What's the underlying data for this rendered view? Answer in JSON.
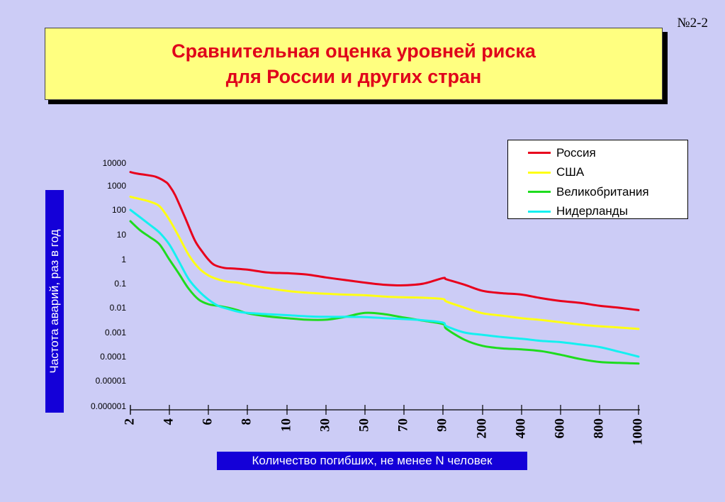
{
  "slide_number": "№2-2",
  "title": {
    "line1": "Сравнительная оценка уровней риска",
    "line2": "для России и других стран"
  },
  "colors": {
    "background": "#ccccf6",
    "title_bg": "#ffff80",
    "title_text": "#e0001a",
    "label_box": "#1400d8"
  },
  "chart_data": {
    "type": "line",
    "xlabel": "Количество погибших, не менее N человек",
    "ylabel": "Частота аварий, раз в год",
    "x_categories": [
      "2",
      "4",
      "6",
      "8",
      "10",
      "30",
      "50",
      "70",
      "90",
      "200",
      "400",
      "600",
      "800",
      "1000"
    ],
    "y_scale": "log",
    "y_ticks": [
      "10000",
      "1000",
      "100",
      "10",
      "1",
      "0.1",
      "0.01",
      "0.001",
      "0.0001",
      "0.00001",
      "0.000001"
    ],
    "legend_position": "top-right",
    "grid": false,
    "series": [
      {
        "name": "Россия",
        "color": "#e8001c",
        "x": [
          2,
          2.3,
          2.8,
          3.3,
          3.8,
          4.0,
          4.3,
          4.8,
          5.3,
          5.7,
          6.0,
          6.3,
          6.8,
          7.3,
          8,
          9,
          10,
          20,
          30,
          40,
          50,
          60,
          70,
          80,
          90,
          100,
          150,
          200,
          300,
          400,
          500,
          600,
          700,
          800,
          900,
          1000
        ],
        "y": [
          4000,
          3500,
          3000,
          2500,
          1500,
          1000,
          400,
          50,
          6,
          2,
          1,
          0.6,
          0.45,
          0.42,
          0.38,
          0.29,
          0.27,
          0.24,
          0.18,
          0.14,
          0.11,
          0.09,
          0.085,
          0.1,
          0.17,
          0.15,
          0.09,
          0.05,
          0.04,
          0.035,
          0.025,
          0.019,
          0.016,
          0.012,
          0.01,
          0.008
        ]
      },
      {
        "name": "США",
        "color": "#ffff14",
        "x": [
          2,
          2.5,
          3,
          3.5,
          4,
          4.5,
          5,
          5.5,
          6,
          6.5,
          7,
          7.5,
          8,
          9,
          10,
          20,
          30,
          40,
          50,
          60,
          70,
          80,
          90,
          100,
          150,
          200,
          300,
          400,
          500,
          600,
          700,
          800,
          900,
          1000
        ],
        "y": [
          350,
          280,
          220,
          140,
          40,
          8,
          1.5,
          0.45,
          0.22,
          0.15,
          0.12,
          0.11,
          0.09,
          0.065,
          0.05,
          0.042,
          0.038,
          0.035,
          0.033,
          0.029,
          0.027,
          0.026,
          0.023,
          0.018,
          0.01,
          0.006,
          0.0048,
          0.0038,
          0.0032,
          0.0026,
          0.0021,
          0.0018,
          0.0016,
          0.0014
        ]
      },
      {
        "name": "Великобритания",
        "color": "#1edc1e",
        "x": [
          2,
          2.5,
          3,
          3.5,
          4,
          4.5,
          5,
          5.5,
          6,
          6.5,
          7,
          7.5,
          8,
          9,
          10,
          20,
          30,
          40,
          50,
          60,
          70,
          80,
          90,
          100,
          150,
          200,
          300,
          400,
          500,
          600,
          700,
          800,
          900,
          1000
        ],
        "y": [
          35,
          15,
          8,
          4,
          1,
          0.25,
          0.06,
          0.022,
          0.014,
          0.012,
          0.01,
          0.008,
          0.006,
          0.0045,
          0.0038,
          0.0033,
          0.0033,
          0.0043,
          0.0062,
          0.0055,
          0.004,
          0.003,
          0.0022,
          0.0014,
          0.0005,
          0.00028,
          0.00022,
          0.0002,
          0.00017,
          0.00012,
          8e-05,
          6e-05,
          5.5e-05,
          5.2e-05
        ]
      },
      {
        "name": "Нидерланды",
        "color": "#14f0f0",
        "x": [
          2,
          2.5,
          3,
          3.5,
          4,
          4.5,
          5,
          5.5,
          6,
          6.5,
          7,
          7.5,
          8,
          9,
          10,
          20,
          30,
          40,
          50,
          60,
          70,
          80,
          90,
          100,
          150,
          200,
          300,
          400,
          500,
          600,
          700,
          800,
          900,
          1000
        ],
        "y": [
          100,
          50,
          25,
          12,
          4,
          0.8,
          0.15,
          0.05,
          0.022,
          0.012,
          0.009,
          0.007,
          0.0062,
          0.0055,
          0.005,
          0.0045,
          0.0043,
          0.0043,
          0.0042,
          0.0038,
          0.0035,
          0.0031,
          0.0025,
          0.0018,
          0.001,
          0.0008,
          0.00065,
          0.00055,
          0.00045,
          0.0004,
          0.00032,
          0.00025,
          0.00016,
          0.0001
        ]
      }
    ]
  }
}
